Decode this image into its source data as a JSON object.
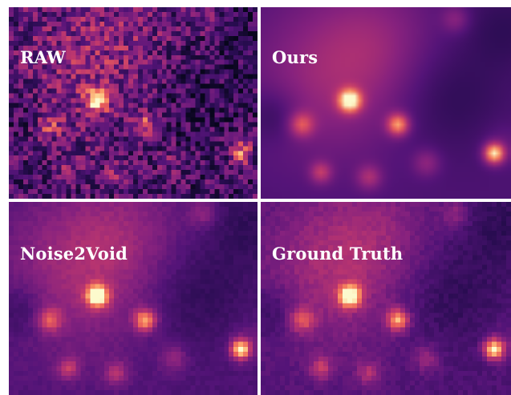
{
  "figure": {
    "panels": [
      {
        "id": "raw",
        "label": "RAW"
      },
      {
        "id": "ours",
        "label": "Ours"
      },
      {
        "id": "noise2void",
        "label": "Noise2Void"
      },
      {
        "id": "ground_truth",
        "label": "Ground Truth"
      }
    ],
    "colormap": "magma"
  }
}
